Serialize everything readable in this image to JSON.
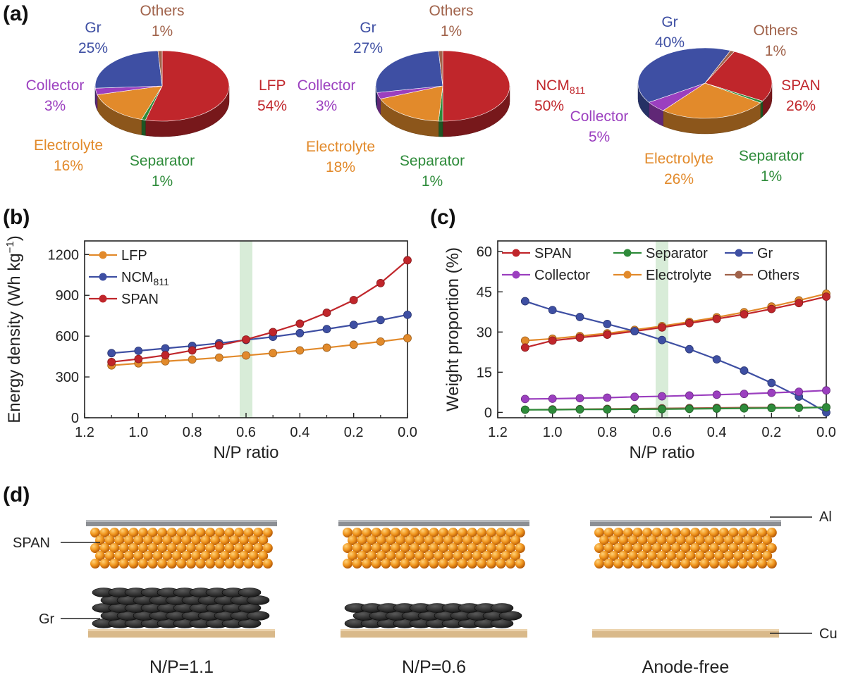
{
  "panels": {
    "a": "(a)",
    "b": "(b)",
    "c": "(c)",
    "d": "(d)"
  },
  "colors": {
    "cathode": "#c0262b",
    "gr": "#3e4fa3",
    "collector": "#9b3fbf",
    "electrolyte": "#e28a2b",
    "separator": "#2e8b3a",
    "others": "#a0624a",
    "highlight": "#d8ecd8"
  },
  "pies": [
    {
      "cathode_name": "LFP",
      "slices": [
        {
          "key": "cathode",
          "label": "LFP",
          "pct": "54%",
          "value": 54
        },
        {
          "key": "separator",
          "label": "Separator",
          "pct": "1%",
          "value": 1
        },
        {
          "key": "electrolyte",
          "label": "Electrolyte",
          "pct": "16%",
          "value": 16
        },
        {
          "key": "collector",
          "label": "Collector",
          "pct": "3%",
          "value": 3
        },
        {
          "key": "gr",
          "label": "Gr",
          "pct": "25%",
          "value": 25
        },
        {
          "key": "others",
          "label": "Others",
          "pct": "1%",
          "value": 1
        }
      ]
    },
    {
      "cathode_name": "NCM811",
      "slices": [
        {
          "key": "cathode",
          "label": "NCM",
          "sub": "811",
          "pct": "50%",
          "value": 50
        },
        {
          "key": "separator",
          "label": "Separator",
          "pct": "1%",
          "value": 1
        },
        {
          "key": "electrolyte",
          "label": "Electrolyte",
          "pct": "18%",
          "value": 18
        },
        {
          "key": "collector",
          "label": "Collector",
          "pct": "3%",
          "value": 3
        },
        {
          "key": "gr",
          "label": "Gr",
          "pct": "27%",
          "value": 27
        },
        {
          "key": "others",
          "label": "Others",
          "pct": "1%",
          "value": 1
        }
      ]
    },
    {
      "cathode_name": "SPAN",
      "slices": [
        {
          "key": "cathode",
          "label": "SPAN",
          "pct": "26%",
          "value": 26
        },
        {
          "key": "separator",
          "label": "Separator",
          "pct": "1%",
          "value": 1
        },
        {
          "key": "electrolyte",
          "label": "Electrolyte",
          "pct": "26%",
          "value": 26
        },
        {
          "key": "collector",
          "label": "Collector",
          "pct": "5%",
          "value": 5
        },
        {
          "key": "gr",
          "label": "Gr",
          "pct": "40%",
          "value": 40
        },
        {
          "key": "others",
          "label": "Others",
          "pct": "1%",
          "value": 1
        }
      ]
    }
  ],
  "chart_data": [
    {
      "id": "b",
      "type": "line",
      "xlabel": "N/P ratio",
      "ylabel": "Energy density (Wh kg",
      "ylabel_sup": "−1",
      "ylabel_close": ")",
      "xlim": [
        1.2,
        0.0
      ],
      "ylim": [
        0,
        1300
      ],
      "xticks": [
        "1.2",
        "1.0",
        "0.8",
        "0.6",
        "0.4",
        "0.2",
        "0.0"
      ],
      "yticks": [
        "0",
        "300",
        "600",
        "900",
        "1200"
      ],
      "highlight_x": 0.6,
      "x": [
        1.1,
        1.0,
        0.9,
        0.8,
        0.7,
        0.6,
        0.5,
        0.4,
        0.3,
        0.2,
        0.1,
        0.0
      ],
      "series": [
        {
          "name": "LFP",
          "color": "#e28a2b",
          "values": [
            385,
            400,
            415,
            428,
            442,
            458,
            475,
            495,
            515,
            537,
            560,
            585
          ]
        },
        {
          "name": "NCM",
          "sub": "811",
          "color": "#3e4fa3",
          "values": [
            475,
            492,
            510,
            528,
            548,
            572,
            595,
            622,
            652,
            683,
            718,
            757
          ]
        },
        {
          "name": "SPAN",
          "color": "#c0262b",
          "values": [
            410,
            432,
            460,
            495,
            532,
            575,
            630,
            692,
            772,
            865,
            990,
            1158
          ]
        }
      ]
    },
    {
      "id": "c",
      "type": "line",
      "xlabel": "N/P ratio",
      "ylabel": "Weight proportion (%)",
      "xlim": [
        1.2,
        0.0
      ],
      "ylim": [
        -2,
        64
      ],
      "xticks": [
        "1.2",
        "1.0",
        "0.8",
        "0.6",
        "0.4",
        "0.2",
        "0.0"
      ],
      "yticks": [
        "0",
        "15",
        "30",
        "45",
        "60"
      ],
      "highlight_x": 0.6,
      "x": [
        1.1,
        1.0,
        0.9,
        0.8,
        0.7,
        0.6,
        0.5,
        0.4,
        0.3,
        0.2,
        0.1,
        0.0
      ],
      "series": [
        {
          "name": "Electrolyte",
          "color": "#e28a2b",
          "values": [
            26.8,
            27.5,
            28.5,
            29.5,
            30.8,
            32.2,
            33.8,
            35.5,
            37.4,
            39.5,
            41.8,
            44.3
          ]
        },
        {
          "name": "SPAN",
          "color": "#c0262b",
          "values": [
            24.2,
            26.8,
            27.9,
            29.0,
            30.3,
            31.7,
            33.3,
            34.9,
            36.6,
            38.6,
            40.8,
            43.2
          ]
        },
        {
          "name": "Gr",
          "color": "#3e4fa3",
          "values": [
            41.5,
            38.2,
            35.6,
            33.0,
            30.3,
            27.0,
            23.6,
            19.8,
            15.6,
            11.0,
            5.9,
            0.0
          ]
        },
        {
          "name": "Collector",
          "color": "#9b3fbf",
          "values": [
            5.0,
            5.1,
            5.3,
            5.5,
            5.8,
            6.0,
            6.3,
            6.6,
            6.9,
            7.3,
            7.7,
            8.2
          ]
        },
        {
          "name": "Others",
          "color": "#a0624a",
          "values": [
            1.0,
            1.1,
            1.2,
            1.3,
            1.4,
            1.5,
            1.6,
            1.7,
            1.8,
            1.8,
            1.8,
            1.9
          ]
        },
        {
          "name": "Separator",
          "color": "#2e8b3a",
          "values": [
            1.0,
            1.0,
            1.1,
            1.1,
            1.2,
            1.2,
            1.3,
            1.4,
            1.5,
            1.6,
            1.7,
            1.9
          ]
        }
      ],
      "legend_order": [
        "SPAN",
        "Separator",
        "Gr",
        "Collector",
        "Electrolyte",
        "Others"
      ]
    }
  ],
  "cells": {
    "captions": [
      "N/P=1.1",
      "N/P=0.6",
      "Anode-free"
    ],
    "labels": {
      "span": "SPAN",
      "gr": "Gr",
      "al": "Al",
      "cu": "Cu"
    },
    "anode_rows": [
      5,
      3,
      0
    ]
  }
}
